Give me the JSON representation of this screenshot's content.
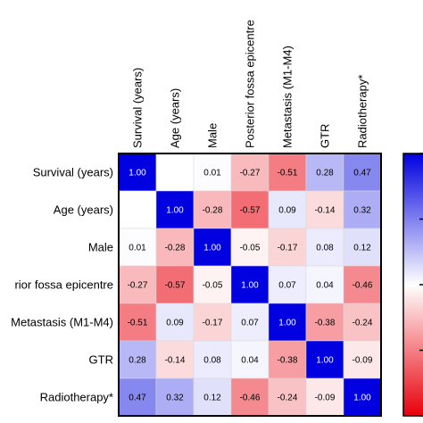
{
  "chart_data": {
    "type": "heatmap",
    "variables": [
      "Survival (years)",
      "Age (years)",
      "Male",
      "Posterior fossa epicentre",
      "Metastasis (M1-M4)",
      "GTR",
      "Radiotherapy*"
    ],
    "row_labels": [
      "Survival (years)",
      "Age (years)",
      "Male",
      "rior fossa epicentre",
      "Metastasis (M1-M4)",
      "GTR",
      "Radiotherapy*"
    ],
    "values": [
      [
        1.0,
        null,
        0.01,
        -0.27,
        -0.51,
        0.28,
        0.47
      ],
      [
        null,
        1.0,
        -0.28,
        -0.57,
        0.09,
        -0.14,
        0.32
      ],
      [
        0.01,
        -0.28,
        1.0,
        -0.05,
        -0.17,
        0.08,
        0.12
      ],
      [
        -0.27,
        -0.57,
        -0.05,
        1.0,
        0.07,
        0.04,
        -0.46
      ],
      [
        -0.51,
        0.09,
        -0.17,
        0.07,
        1.0,
        -0.38,
        -0.24
      ],
      [
        0.28,
        -0.14,
        0.08,
        0.04,
        -0.38,
        1.0,
        -0.09
      ],
      [
        0.47,
        0.32,
        0.12,
        -0.46,
        -0.24,
        -0.09,
        1.0
      ]
    ],
    "labels": [
      [
        "1.00",
        "",
        "0.01",
        "-0.27",
        "-0.51",
        "0.28",
        "0.47"
      ],
      [
        "",
        "1.00",
        "-0.28",
        "-0.57",
        "0.09",
        "-0.14",
        "0.32"
      ],
      [
        "0.01",
        "-0.28",
        "1.00",
        "-0.05",
        "-0.17",
        "0.08",
        "0.12"
      ],
      [
        "-0.27",
        "-0.57",
        "-0.05",
        "1.00",
        "0.07",
        "0.04",
        "-0.46"
      ],
      [
        "-0.51",
        "0.09",
        "-0.17",
        "0.07",
        "1.00",
        "-0.38",
        "-0.24"
      ],
      [
        "0.28",
        "-0.14",
        "0.08",
        "0.04",
        "-0.38",
        "1.00",
        "-0.09"
      ],
      [
        "0.47",
        "0.32",
        "0.12",
        "-0.46",
        "-0.24",
        "-0.09",
        "1.00"
      ]
    ],
    "color_scale": {
      "min": -1,
      "max": 1,
      "negative_color": "#e8000b",
      "neutral_color": "#ffffff",
      "positive_color": "#0000e0"
    },
    "legend": "right",
    "grid": false
  }
}
